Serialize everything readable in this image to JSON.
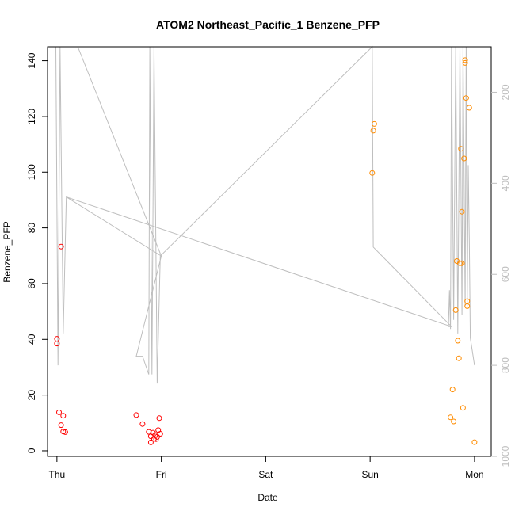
{
  "chart_data": {
    "type": "scatter",
    "title": "ATOM2 Northeast_Pacific_1 Benzene_PFP",
    "xlabel": "Date",
    "ylabel": "Benzene_PFP",
    "x_unit": "days since Thu 00:00",
    "xlim": [
      -0.09,
      4.16
    ],
    "ylim": [
      -2,
      145
    ],
    "y2lim": [
      1000,
      100
    ],
    "x_ticks": [
      {
        "value": 0,
        "label": "Thu"
      },
      {
        "value": 1,
        "label": "Fri"
      },
      {
        "value": 2,
        "label": "Sat"
      },
      {
        "value": 3,
        "label": "Sun"
      },
      {
        "value": 4,
        "label": "Mon"
      }
    ],
    "y_ticks": [
      0,
      20,
      40,
      60,
      80,
      100,
      120,
      140
    ],
    "y2_ticks": [
      200,
      400,
      600,
      800,
      1000
    ],
    "colors": {
      "series_red": "#ff0000",
      "series_orange": "#ff8c00",
      "altitude_line": "#bebebe",
      "axis": "#000000",
      "right_axis": "#bebebe"
    },
    "series": [
      {
        "color": "red",
        "points": [
          [
            0.0,
            40.2
          ],
          [
            0.0,
            38.5
          ],
          [
            0.02,
            13.8
          ],
          [
            0.04,
            73.3
          ],
          [
            0.04,
            9.2
          ],
          [
            0.06,
            12.6
          ],
          [
            0.06,
            6.9
          ],
          [
            0.08,
            6.7
          ],
          [
            0.76,
            12.8
          ],
          [
            0.82,
            9.6
          ],
          [
            0.88,
            6.8
          ],
          [
            0.9,
            5.2
          ],
          [
            0.9,
            3.0
          ],
          [
            0.92,
            6.5
          ],
          [
            0.93,
            4.3
          ],
          [
            0.94,
            5.6
          ],
          [
            0.95,
            4.2
          ],
          [
            0.96,
            5.0
          ],
          [
            0.97,
            7.4
          ],
          [
            0.98,
            11.7
          ],
          [
            0.99,
            6.1
          ]
        ]
      },
      {
        "color": "orange",
        "points": [
          [
            3.02,
            99.7
          ],
          [
            3.03,
            114.9
          ],
          [
            3.04,
            117.3
          ],
          [
            3.77,
            12.0
          ],
          [
            3.79,
            22.0
          ],
          [
            3.8,
            10.5
          ],
          [
            3.82,
            50.5
          ],
          [
            3.83,
            68.1
          ],
          [
            3.84,
            39.5
          ],
          [
            3.85,
            33.2
          ],
          [
            3.86,
            67.3
          ],
          [
            3.87,
            108.4
          ],
          [
            3.88,
            85.8
          ],
          [
            3.88,
            67.3
          ],
          [
            3.89,
            15.4
          ],
          [
            3.9,
            104.9
          ],
          [
            3.91,
            139.2
          ],
          [
            3.91,
            140.2
          ],
          [
            3.92,
            126.6
          ],
          [
            3.93,
            51.9
          ],
          [
            3.93,
            53.7
          ],
          [
            3.95,
            123.1
          ],
          [
            4.0,
            3.1
          ]
        ]
      }
    ],
    "altitude_line": [
      [
        -0.01,
        35
      ],
      [
        0.01,
        800
      ],
      [
        0.03,
        80
      ],
      [
        0.06,
        730
      ],
      [
        0.09,
        430
      ],
      [
        1.0,
        560
      ],
      [
        0.2,
        100
      ],
      [
        1.0,
        560
      ],
      [
        0.76,
        780
      ],
      [
        0.82,
        780
      ],
      [
        0.88,
        820
      ],
      [
        0.89,
        100
      ],
      [
        0.91,
        820
      ],
      [
        0.93,
        100
      ],
      [
        0.96,
        840
      ],
      [
        0.99,
        560
      ],
      [
        3.02,
        100
      ],
      [
        3.03,
        540
      ],
      [
        3.78,
        715
      ],
      [
        0.09,
        430
      ],
      [
        3.78,
        715
      ],
      [
        3.75,
        715
      ],
      [
        3.76,
        635
      ],
      [
        3.77,
        720
      ],
      [
        3.78,
        100
      ],
      [
        3.8,
        700
      ],
      [
        3.82,
        100
      ],
      [
        3.84,
        730
      ],
      [
        3.86,
        100
      ],
      [
        3.88,
        690
      ],
      [
        3.89,
        100
      ],
      [
        3.91,
        670
      ],
      [
        3.92,
        100
      ],
      [
        3.93,
        670
      ],
      [
        3.94,
        360
      ],
      [
        3.95,
        520
      ],
      [
        3.96,
        740
      ],
      [
        4.0,
        800
      ]
    ]
  }
}
